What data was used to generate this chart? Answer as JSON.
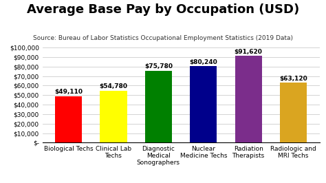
{
  "title": "Average Base Pay by Occupation (USD)",
  "subtitle": "Source: Bureau of Labor Statistics Occupational Employment Statistics (2019 Data)",
  "categories": [
    "Biological Techs",
    "Clinical Lab\nTechs",
    "Diagnostic\nMedical\nSonographers",
    "Nuclear\nMedicine Techs",
    "Radiation\nTherapists",
    "Radiologic and\nMRI Techs"
  ],
  "values": [
    49110,
    54780,
    75780,
    80240,
    91620,
    63120
  ],
  "bar_colors": [
    "#FF0000",
    "#FFFF00",
    "#008000",
    "#00008B",
    "#7B2D8B",
    "#DAA520"
  ],
  "value_labels": [
    "$49,110",
    "$54,780",
    "$75,780",
    "$80,240",
    "$91,620",
    "$63,120"
  ],
  "ylim": [
    0,
    100000
  ],
  "yticks": [
    0,
    10000,
    20000,
    30000,
    40000,
    50000,
    60000,
    70000,
    80000,
    90000,
    100000
  ],
  "ytick_labels": [
    "$-",
    "$10,000",
    "$20,000",
    "$30,000",
    "$40,000",
    "$50,000",
    "$60,000",
    "$70,000",
    "$80,000",
    "$90,000",
    "$100,000"
  ],
  "background_color": "#FFFFFF",
  "grid_color": "#CCCCCC",
  "title_fontsize": 13,
  "subtitle_fontsize": 6.5,
  "label_fontsize": 6.5,
  "value_fontsize": 6.5,
  "tick_fontsize": 6.5
}
